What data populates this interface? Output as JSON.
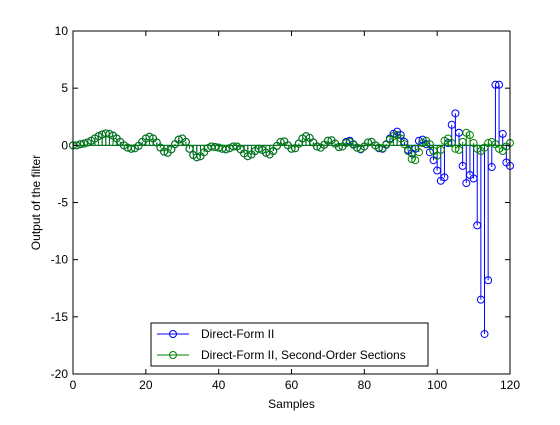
{
  "chart_data": {
    "type": "stem",
    "xlabel": "Samples",
    "ylabel": "Output of the filter",
    "xlim": [
      0,
      120
    ],
    "ylim": [
      -20,
      10
    ],
    "xticks": [
      0,
      20,
      40,
      60,
      80,
      100,
      120
    ],
    "yticks": [
      10,
      5,
      0,
      -5,
      -10,
      -15,
      -20
    ],
    "xtick_labels": [
      "0",
      "20",
      "40",
      "60",
      "80",
      "100",
      "120"
    ],
    "ytick_labels": [
      "10",
      "5",
      "0",
      "-5",
      "-10",
      "-15",
      "-20"
    ],
    "grid": false,
    "legend_position": "bottom-center",
    "series": [
      {
        "name": "Direct-Form II",
        "color": "#0000ff",
        "x": [
          0,
          1,
          2,
          3,
          4,
          5,
          6,
          7,
          8,
          9,
          10,
          11,
          12,
          13,
          14,
          15,
          16,
          17,
          18,
          19,
          20,
          21,
          22,
          23,
          24,
          25,
          26,
          27,
          28,
          29,
          30,
          31,
          32,
          33,
          34,
          35,
          36,
          37,
          38,
          39,
          40,
          41,
          42,
          43,
          44,
          45,
          46,
          47,
          48,
          49,
          50,
          51,
          52,
          53,
          54,
          55,
          56,
          57,
          58,
          59,
          60,
          61,
          62,
          63,
          64,
          65,
          66,
          67,
          68,
          69,
          70,
          71,
          72,
          73,
          74,
          75,
          76,
          77,
          78,
          79,
          80,
          81,
          82,
          83,
          84,
          85,
          86,
          87,
          88,
          89,
          90,
          91,
          92,
          93,
          94,
          95,
          96,
          97,
          98,
          99,
          100,
          101,
          102,
          103,
          104,
          105,
          106,
          107,
          108,
          109,
          110,
          111,
          112,
          113,
          114,
          115,
          116,
          117,
          118,
          119,
          120
        ],
        "y": [
          0,
          0,
          0.1,
          0.15,
          0.25,
          0.4,
          0.6,
          0.8,
          0.95,
          1.05,
          1.0,
          0.85,
          0.6,
          0.3,
          0,
          -0.2,
          -0.3,
          -0.25,
          -0.05,
          0.3,
          0.6,
          0.75,
          0.6,
          0.25,
          -0.2,
          -0.55,
          -0.65,
          -0.35,
          0.1,
          0.5,
          0.6,
          0.3,
          -0.3,
          -0.85,
          -1.05,
          -0.95,
          -0.6,
          -0.25,
          -0.1,
          -0.15,
          -0.2,
          -0.3,
          -0.35,
          -0.25,
          -0.1,
          -0.1,
          -0.35,
          -0.7,
          -0.95,
          -0.8,
          -0.5,
          -0.3,
          -0.4,
          -0.65,
          -0.8,
          -0.5,
          -0.05,
          0.3,
          0.35,
          0.0,
          -0.3,
          -0.25,
          0.15,
          0.6,
          0.8,
          0.65,
          0.25,
          -0.1,
          -0.2,
          0.05,
          0.4,
          0.45,
          0.15,
          -0.15,
          -0.1,
          0.3,
          0.4,
          0.1,
          -0.2,
          -0.35,
          -0.1,
          0.25,
          0.3,
          0.0,
          -0.25,
          -0.3,
          0.05,
          0.6,
          1.0,
          1.2,
          0.9,
          0.3,
          -0.4,
          -0.7,
          -0.3,
          0.4,
          0.5,
          0.1,
          -0.6,
          -1.3,
          -2.2,
          -3.1,
          -2.8,
          0.2,
          1.8,
          2.8,
          1.1,
          -1.8,
          -3.3,
          -2.6,
          -2.9,
          -7.0,
          -13.5,
          -16.5,
          -11.8,
          -1.9,
          5.3,
          5.3,
          1.0,
          -1.5,
          -1.8
        ]
      },
      {
        "name": "Direct-Form II, Second-Order Sections",
        "color": "#008000",
        "x": [
          0,
          1,
          2,
          3,
          4,
          5,
          6,
          7,
          8,
          9,
          10,
          11,
          12,
          13,
          14,
          15,
          16,
          17,
          18,
          19,
          20,
          21,
          22,
          23,
          24,
          25,
          26,
          27,
          28,
          29,
          30,
          31,
          32,
          33,
          34,
          35,
          36,
          37,
          38,
          39,
          40,
          41,
          42,
          43,
          44,
          45,
          46,
          47,
          48,
          49,
          50,
          51,
          52,
          53,
          54,
          55,
          56,
          57,
          58,
          59,
          60,
          61,
          62,
          63,
          64,
          65,
          66,
          67,
          68,
          69,
          70,
          71,
          72,
          73,
          74,
          75,
          76,
          77,
          78,
          79,
          80,
          81,
          82,
          83,
          84,
          85,
          86,
          87,
          88,
          89,
          90,
          91,
          92,
          93,
          94,
          95,
          96,
          97,
          98,
          99,
          100,
          101,
          102,
          103,
          104,
          105,
          106,
          107,
          108,
          109,
          110,
          111,
          112,
          113,
          114,
          115,
          116,
          117,
          118,
          119,
          120
        ],
        "y": [
          0,
          0,
          0.1,
          0.15,
          0.25,
          0.4,
          0.6,
          0.8,
          0.95,
          1.05,
          1.0,
          0.85,
          0.6,
          0.3,
          0,
          -0.2,
          -0.3,
          -0.25,
          -0.05,
          0.3,
          0.6,
          0.75,
          0.6,
          0.25,
          -0.2,
          -0.55,
          -0.65,
          -0.35,
          0.1,
          0.5,
          0.6,
          0.3,
          -0.3,
          -0.85,
          -1.05,
          -0.95,
          -0.6,
          -0.25,
          -0.1,
          -0.15,
          -0.2,
          -0.3,
          -0.35,
          -0.25,
          -0.1,
          -0.1,
          -0.35,
          -0.7,
          -0.95,
          -0.8,
          -0.5,
          -0.3,
          -0.4,
          -0.65,
          -0.8,
          -0.5,
          -0.05,
          0.3,
          0.35,
          0.0,
          -0.3,
          -0.25,
          0.15,
          0.6,
          0.8,
          0.65,
          0.25,
          -0.1,
          -0.2,
          0.05,
          0.4,
          0.45,
          0.15,
          -0.15,
          -0.1,
          0.2,
          0.3,
          0.05,
          -0.2,
          -0.3,
          -0.1,
          0.25,
          0.3,
          0.0,
          -0.2,
          -0.25,
          0.1,
          0.5,
          0.8,
          0.9,
          0.6,
          0.1,
          -0.5,
          -1.2,
          -1.3,
          -0.6,
          0.2,
          0.4,
          0.1,
          -0.5,
          -0.9,
          -0.4,
          0.4,
          0.6,
          0.2,
          -0.3,
          -0.4,
          0.3,
          1.1,
          0.9,
          0.2,
          -0.3,
          -0.5,
          -0.2,
          0.2,
          0.3,
          0.1,
          -0.3,
          -0.5,
          -0.1,
          0.2
        ]
      }
    ]
  }
}
